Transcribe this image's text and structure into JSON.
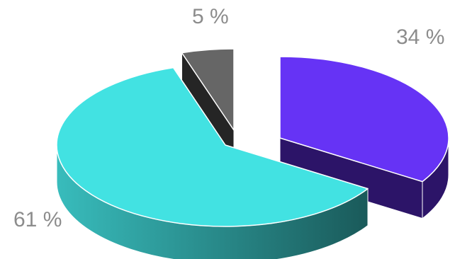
{
  "chart_data": {
    "type": "pie",
    "style": "3d-exploded",
    "categories": [
      "",
      "",
      ""
    ],
    "values": [
      34,
      61,
      5
    ],
    "labels": [
      "34 %",
      "61 %",
      "5 %"
    ],
    "colors": {
      "top": [
        "#6633f5",
        "#42e2e2",
        "#666666"
      ],
      "side": [
        "#2c1468",
        "#1e6c6c",
        "#252525"
      ]
    },
    "title": "",
    "legend": "none"
  }
}
